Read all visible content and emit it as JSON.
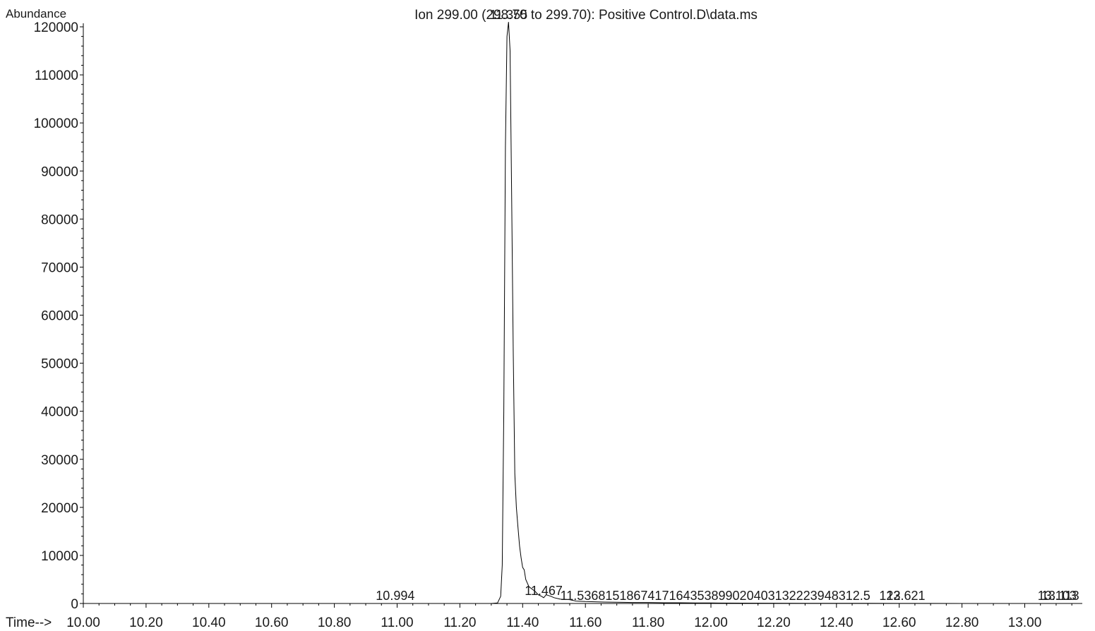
{
  "chart_data": {
    "type": "line",
    "title": "Ion 299.00 (298.70 to 299.70): Positive Control.D\\data.ms",
    "ylabel": "Abundance",
    "xlabel": "Time-->",
    "xlim": [
      10.0,
      13.18
    ],
    "ylim": [
      0,
      120000
    ],
    "grid": false,
    "legend": "none",
    "x_ticks": [
      "10.00",
      "10.20",
      "10.40",
      "10.60",
      "10.80",
      "11.00",
      "11.20",
      "11.40",
      "11.60",
      "11.80",
      "12.00",
      "12.20",
      "12.40",
      "12.60",
      "12.80",
      "13.00"
    ],
    "y_ticks": [
      "0",
      "10000",
      "20000",
      "30000",
      "40000",
      "50000",
      "60000",
      "70000",
      "80000",
      "90000",
      "100000",
      "110000",
      "120000"
    ],
    "series": [
      {
        "x": [
          10.0,
          10.5,
          11.0,
          11.2,
          11.3,
          11.32,
          11.33,
          11.335,
          11.34,
          11.345,
          11.35,
          11.355,
          11.36,
          11.365,
          11.37,
          11.375,
          11.38,
          11.385,
          11.39,
          11.395,
          11.4,
          11.405,
          11.41,
          11.42,
          11.43,
          11.44,
          11.45,
          11.46,
          11.467,
          11.475,
          11.49,
          11.5,
          11.52,
          11.55,
          11.57,
          11.6,
          11.63,
          11.66,
          11.7,
          11.75,
          11.8,
          11.85,
          11.9,
          11.95,
          12.0,
          12.1,
          12.2,
          12.3,
          12.4,
          12.5,
          12.6,
          12.7,
          12.8,
          12.9,
          13.0,
          13.1,
          13.18
        ],
        "y": [
          0,
          0,
          0,
          0,
          0,
          100,
          1500,
          8000,
          40000,
          95000,
          118000,
          121000,
          115000,
          85000,
          52000,
          27000,
          20000,
          16000,
          12000,
          9500,
          7500,
          7000,
          5000,
          3500,
          3000,
          2500,
          1800,
          1500,
          1200,
          1800,
          1500,
          1200,
          900,
          800,
          500,
          400,
          350,
          300,
          250,
          200,
          200,
          150,
          150,
          100,
          100,
          80,
          60,
          50,
          40,
          30,
          20,
          10,
          0,
          0,
          0,
          0,
          0
        ]
      }
    ],
    "annotations": [
      {
        "x": 11.355,
        "y": 121000,
        "text": "11.355"
      },
      {
        "x": 10.994,
        "y": 0,
        "text": "10.994"
      },
      {
        "x": 11.467,
        "y": 1200,
        "text": "11.467"
      },
      {
        "x": 11.52,
        "y": 0,
        "text": "11.5368151867417164353899020403132223948312.5"
      },
      {
        "x": 12.57,
        "y": 0,
        "text": "123"
      },
      {
        "x": 12.621,
        "y": 0,
        "text": "12.621"
      },
      {
        "x": 13.103,
        "y": 0,
        "text": "13.103"
      },
      {
        "x": 13.113,
        "y": 0,
        "text": "13.113"
      }
    ]
  }
}
